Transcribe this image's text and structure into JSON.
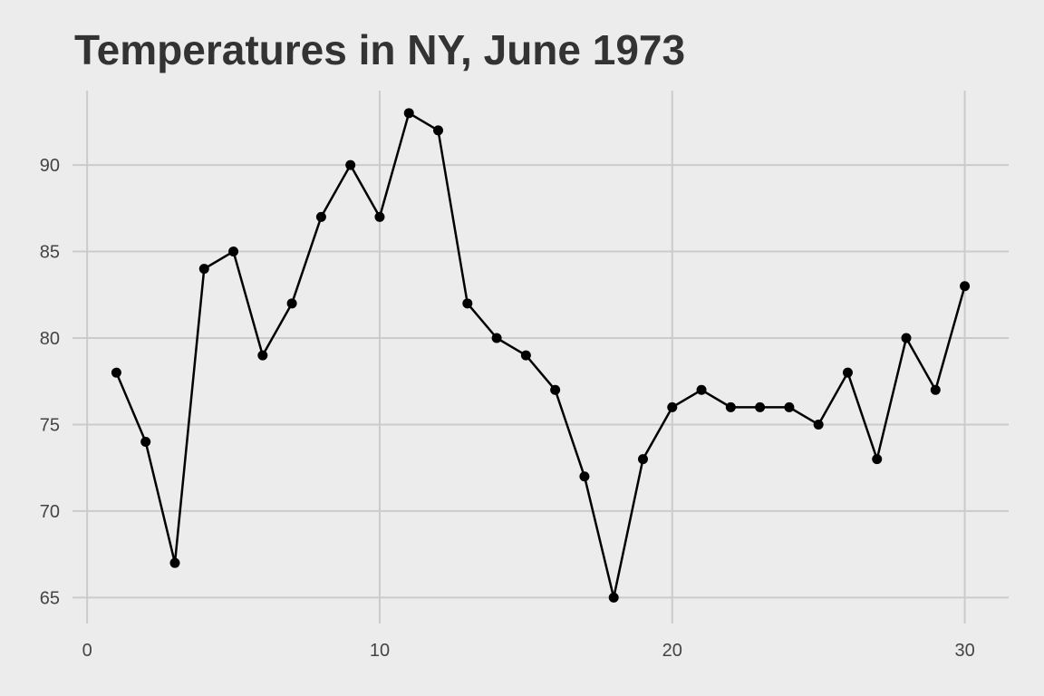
{
  "chart_data": {
    "type": "line",
    "title": "Temperatures in NY, June 1973",
    "xlabel": "",
    "ylabel": "",
    "x": [
      1,
      2,
      3,
      4,
      5,
      6,
      7,
      8,
      9,
      10,
      11,
      12,
      13,
      14,
      15,
      16,
      17,
      18,
      19,
      20,
      21,
      22,
      23,
      24,
      25,
      26,
      27,
      28,
      29,
      30
    ],
    "series": [
      {
        "values": [
          78,
          74,
          67,
          84,
          85,
          79,
          82,
          87,
          90,
          87,
          93,
          92,
          82,
          80,
          79,
          77,
          72,
          65,
          73,
          76,
          77,
          76,
          76,
          76,
          75,
          78,
          73,
          80,
          77,
          83
        ]
      }
    ],
    "xlim": [
      -0.5,
      31.5
    ],
    "ylim": [
      63.5,
      94.3
    ],
    "x_ticks": [
      0,
      10,
      20,
      30
    ],
    "y_ticks": [
      65,
      70,
      75,
      80,
      85,
      90
    ],
    "grid": true,
    "legend": "none",
    "colors": {
      "background": "#ececec",
      "grid": "#cbcbcb",
      "line": "#000000",
      "text": "#333333"
    }
  }
}
